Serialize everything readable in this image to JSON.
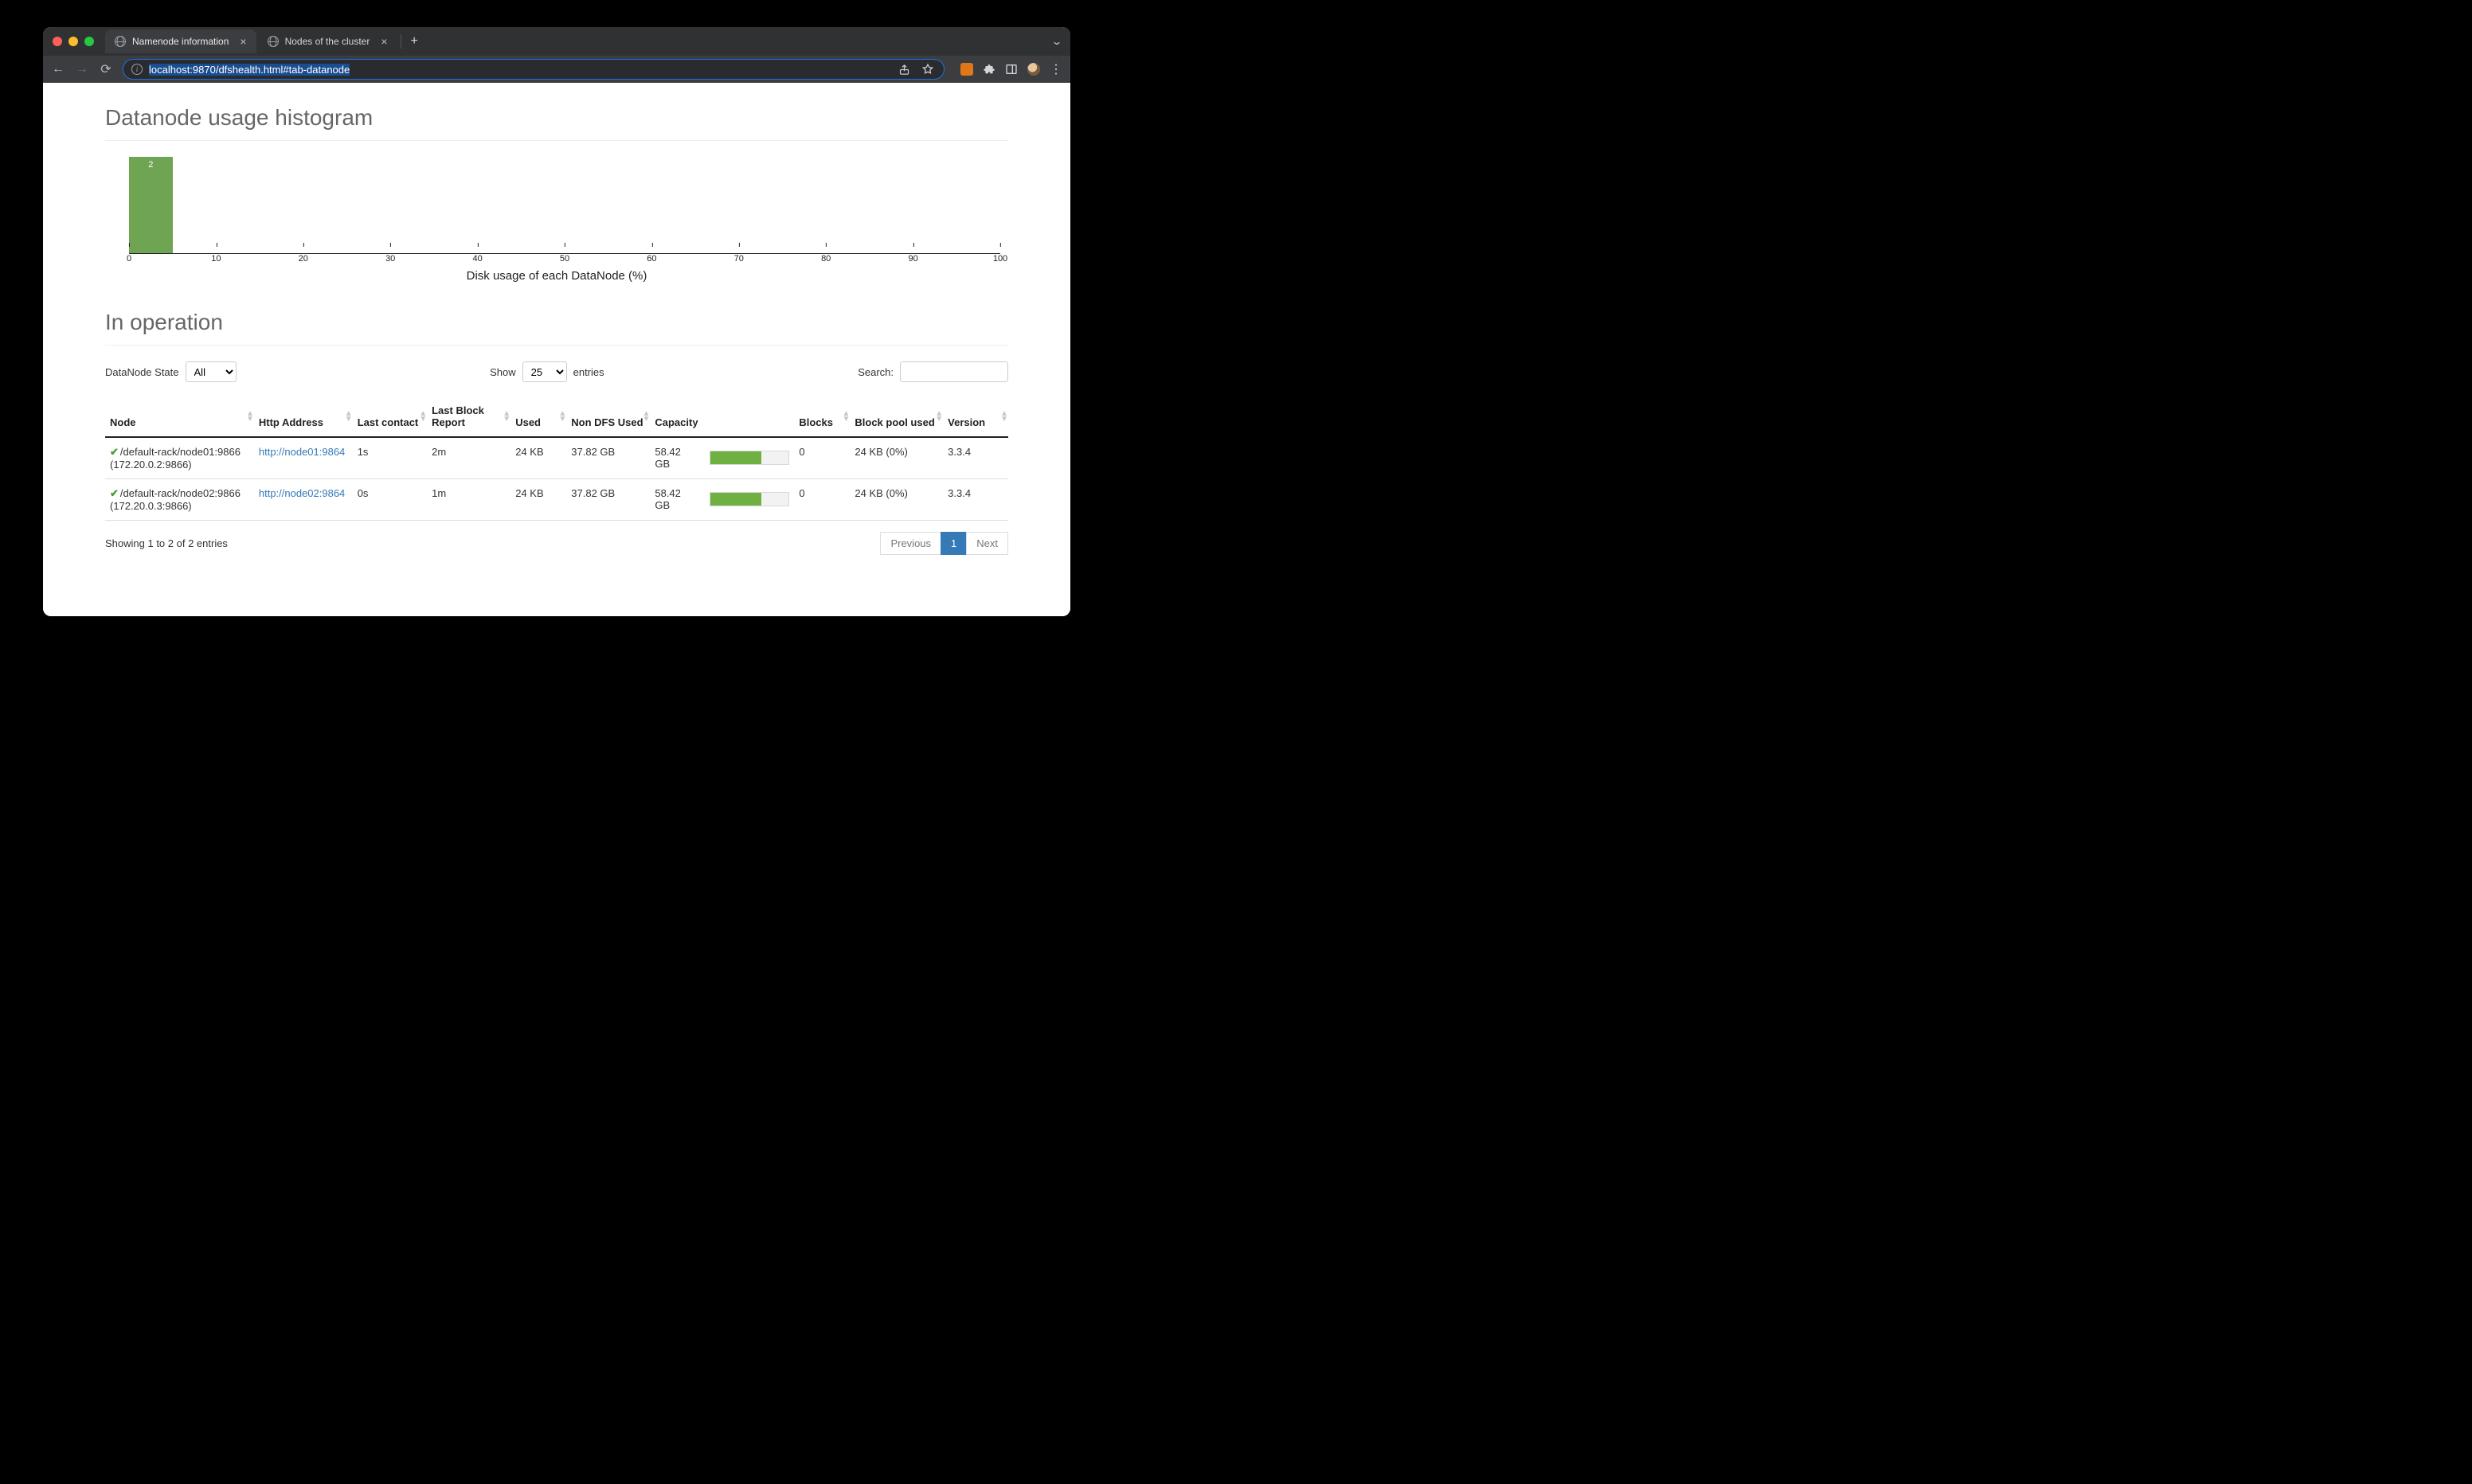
{
  "browser": {
    "tabs": [
      {
        "title": "Namenode information",
        "active": true
      },
      {
        "title": "Nodes of the cluster",
        "active": false
      }
    ],
    "url_display": "localhost:9870/dfshealth.html#tab-datanode"
  },
  "histogram": {
    "title": "Datanode usage histogram",
    "xlabel": "Disk usage of each DataNode (%)",
    "xlim": [
      0,
      100
    ],
    "xtick_step": 10,
    "xticks": [
      0,
      10,
      20,
      30,
      40,
      50,
      60,
      70,
      80,
      90,
      100
    ],
    "bar_color": "#6fa552",
    "label_color": "#ffffff",
    "axis_color": "#222222",
    "bars": [
      {
        "bin_start": 0,
        "bin_end": 5,
        "count": 2,
        "label": "2"
      }
    ]
  },
  "operation": {
    "title": "In operation",
    "state_label": "DataNode State",
    "state_options": [
      "All"
    ],
    "state_selected": "All",
    "show_label_left": "Show",
    "show_label_right": "entries",
    "show_options": [
      "25"
    ],
    "show_selected": "25",
    "search_label": "Search:",
    "search_value": "",
    "columns": [
      "Node",
      "Http Address",
      "Last contact",
      "Last Block Report",
      "Used",
      "Non DFS Used",
      "Capacity",
      "Blocks",
      "Block pool used",
      "Version"
    ],
    "capacity_bar": {
      "bg": "#f2f2f2",
      "fill": "#6fb043",
      "border": "#d8d8d8"
    },
    "rows": [
      {
        "node_line1": "/default-rack/node01:9866",
        "node_line2": "(172.20.0.2:9866)",
        "http": "http://node01:9864",
        "last_contact": "1s",
        "last_block_report": "2m",
        "used": "24 KB",
        "non_dfs": "37.82 GB",
        "capacity_text": "58.42 GB",
        "capacity_pct": 65,
        "blocks": "0",
        "block_pool": "24 KB (0%)",
        "version": "3.3.4"
      },
      {
        "node_line1": "/default-rack/node02:9866",
        "node_line2": "(172.20.0.3:9866)",
        "http": "http://node02:9864",
        "last_contact": "0s",
        "last_block_report": "1m",
        "used": "24 KB",
        "non_dfs": "37.82 GB",
        "capacity_text": "58.42 GB",
        "capacity_pct": 65,
        "blocks": "0",
        "block_pool": "24 KB (0%)",
        "version": "3.3.4"
      }
    ],
    "showing_text": "Showing 1 to 2 of 2 entries",
    "pagination": {
      "previous": "Previous",
      "pages": [
        "1"
      ],
      "active": "1",
      "next": "Next"
    }
  }
}
